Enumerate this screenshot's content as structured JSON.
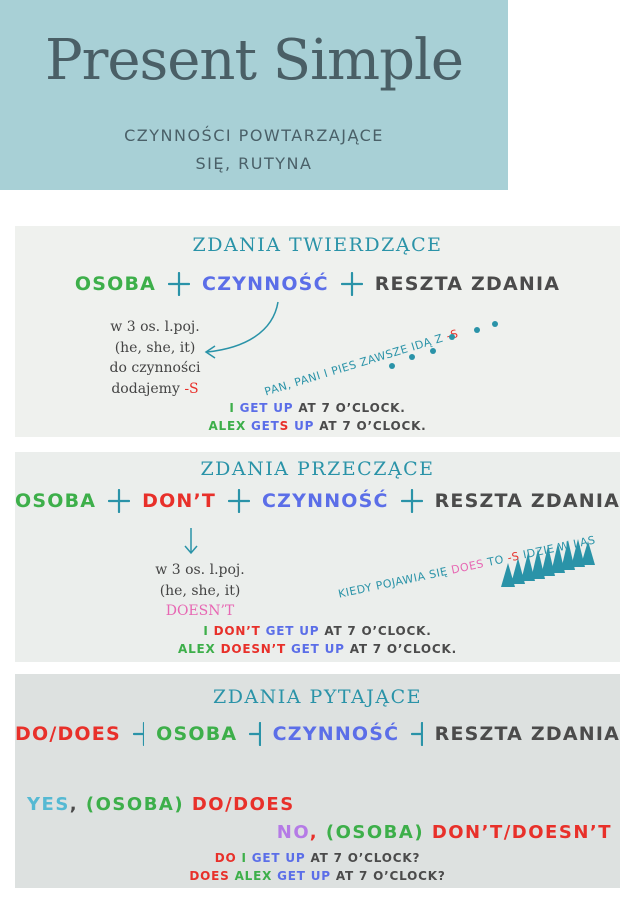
{
  "header": {
    "title": "Present Simple",
    "subtitle": "CZYNNOŚCI POWTARZAJĄCE SIĘ, RUTYNA"
  },
  "sections": [
    {
      "heading": "ZDANIA TWIERDZĄCE",
      "formula": [
        {
          "text": "OSOBA",
          "color": "#3daf4a"
        },
        {
          "text": "CZYNNOŚĆ",
          "color": "#5b6ee8"
        },
        {
          "text": "RESZTA ZDANIA",
          "color": "#4b4b4b"
        }
      ],
      "note": [
        [
          {
            "text": "w 3 os. l.poj.",
            "color": "#444444"
          }
        ],
        [
          {
            "text": "(he, she, it)",
            "color": "#444444"
          }
        ],
        [
          {
            "text": "do czynności",
            "color": "#444444"
          }
        ],
        [
          {
            "text": "dodajemy ",
            "color": "#444444"
          },
          {
            "text": "-S",
            "color": "#e8302a"
          }
        ]
      ],
      "tip": [
        {
          "text": "PAN, PANI I PIES ZAWSZE IDĄ Z ",
          "color": "#2a93a8"
        },
        {
          "text": "-S",
          "color": "#e8302a"
        }
      ],
      "examples": [
        [
          {
            "text": "I ",
            "color": "#3daf4a"
          },
          {
            "text": "GET UP ",
            "color": "#5b6ee8"
          },
          {
            "text": "AT 7 O’CLOCK.",
            "color": "#4b4b4b"
          }
        ],
        [
          {
            "text": "ALEX ",
            "color": "#3daf4a"
          },
          {
            "text": "GET",
            "color": "#5b6ee8"
          },
          {
            "text": "S",
            "color": "#e8302a"
          },
          {
            "text": " UP ",
            "color": "#5b6ee8"
          },
          {
            "text": "AT 7 O’CLOCK.",
            "color": "#4b4b4b"
          }
        ]
      ]
    },
    {
      "heading": "ZDANIA PRZECZĄCE",
      "formula": [
        {
          "text": "OSOBA",
          "color": "#3daf4a"
        },
        {
          "text": "DON’T",
          "color": "#e8302a"
        },
        {
          "text": "CZYNNOŚĆ",
          "color": "#5b6ee8"
        },
        {
          "text": "RESZTA ZDANIA",
          "color": "#4b4b4b"
        }
      ],
      "note": [
        [
          {
            "text": "w 3 os. l.poj.",
            "color": "#444444"
          }
        ],
        [
          {
            "text": "(he, she, it)",
            "color": "#444444"
          }
        ],
        [
          {
            "text": "DOESN’T",
            "color": "#e767b3"
          }
        ]
      ],
      "tip": [
        {
          "text": "KIEDY POJAWIA SIĘ ",
          "color": "#2a93a8"
        },
        {
          "text": "DOES",
          "color": "#e767b3"
        },
        {
          "text": " TO ",
          "color": "#2a93a8"
        },
        {
          "text": "-S",
          "color": "#e8302a"
        },
        {
          "text": " IDZIE W LAS",
          "color": "#2a93a8"
        }
      ],
      "examples": [
        [
          {
            "text": "I ",
            "color": "#3daf4a"
          },
          {
            "text": "DON’T ",
            "color": "#e8302a"
          },
          {
            "text": "GET UP ",
            "color": "#5b6ee8"
          },
          {
            "text": "AT 7 O’CLOCK.",
            "color": "#4b4b4b"
          }
        ],
        [
          {
            "text": "ALEX ",
            "color": "#3daf4a"
          },
          {
            "text": "DOESN’T ",
            "color": "#e8302a"
          },
          {
            "text": "GET UP ",
            "color": "#5b6ee8"
          },
          {
            "text": "AT 7 O’CLOCK.",
            "color": "#4b4b4b"
          }
        ]
      ]
    },
    {
      "heading": "ZDANIA PYTAJĄCE",
      "formula": [
        {
          "text": "DO/DOES",
          "color": "#e8302a"
        },
        {
          "text": "OSOBA",
          "color": "#3daf4a"
        },
        {
          "text": "CZYNNOŚĆ",
          "color": "#5b6ee8"
        },
        {
          "text": "RESZTA ZDANIA",
          "color": "#4b4b4b"
        }
      ],
      "answers": [
        [
          {
            "text": "YES",
            "color": "#55b9d3"
          },
          {
            "text": ", ",
            "color": "#4b4b4b"
          },
          {
            "text": "(OSOBA) ",
            "color": "#3daf4a"
          },
          {
            "text": "DO/DOES",
            "color": "#e8302a"
          }
        ],
        [
          {
            "text": "NO",
            "color": "#b57be6"
          },
          {
            "text": ", ",
            "color": "#e8302a"
          },
          {
            "text": "(OSOBA) ",
            "color": "#3daf4a"
          },
          {
            "text": "DON’T/DOESN’T",
            "color": "#e8302a"
          }
        ]
      ],
      "examples": [
        [
          {
            "text": "DO ",
            "color": "#e8302a"
          },
          {
            "text": "I ",
            "color": "#3daf4a"
          },
          {
            "text": "GET UP ",
            "color": "#5b6ee8"
          },
          {
            "text": "AT 7 O’CLOCK?",
            "color": "#4b4b4b"
          }
        ],
        [
          {
            "text": "DOES ",
            "color": "#e8302a"
          },
          {
            "text": "ALEX ",
            "color": "#3daf4a"
          },
          {
            "text": "GET UP ",
            "color": "#5b6ee8"
          },
          {
            "text": "AT 7 O’CLOCK?",
            "color": "#4b4b4b"
          }
        ]
      ]
    }
  ]
}
